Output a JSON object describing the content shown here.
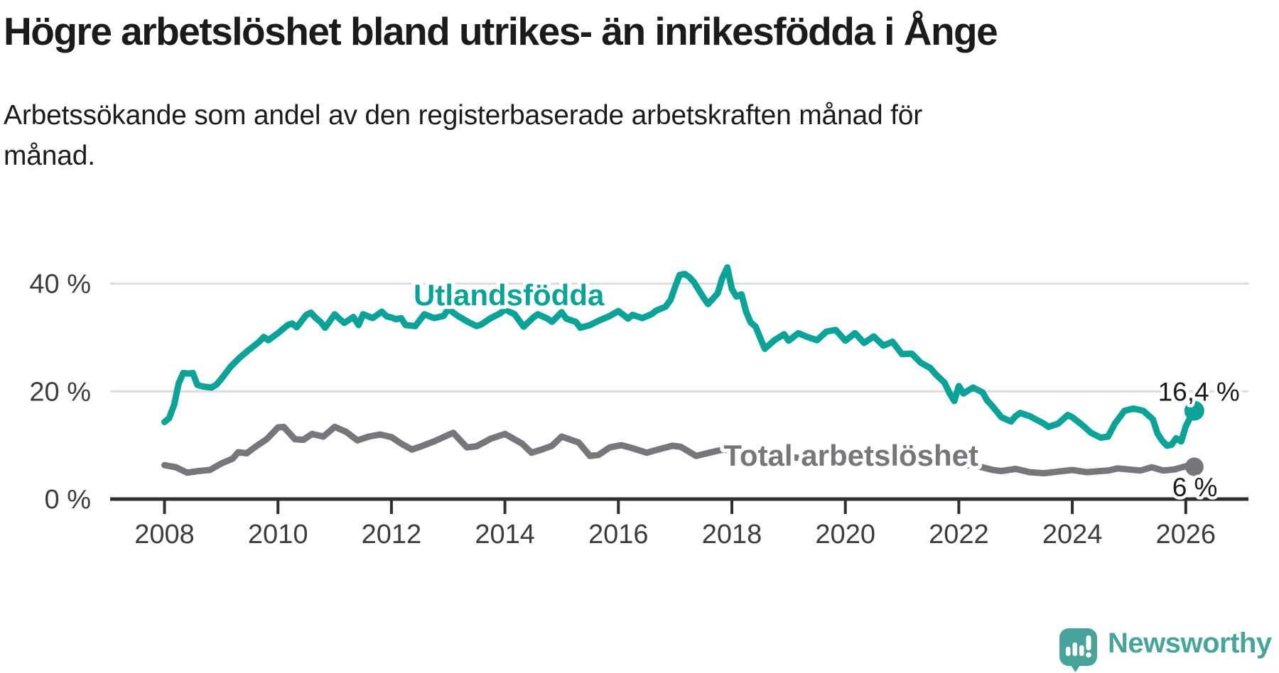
{
  "header": {
    "title": "Högre arbetslöshet bland utrikes- än inrikesfödda i Ånge",
    "subtitle_lines": [
      "Arbetssökande som andel av den registerbaserade arbetskraften månad för",
      "månad."
    ]
  },
  "footer": {
    "brand": "Newsworthy"
  },
  "colors": {
    "series_foreign": "#0ba298",
    "series_total": "#77767b",
    "grid": "#dcdcdc",
    "axis": "#2e2e2e",
    "tick_text": "#3c3c3c",
    "value_label_text": "#1a1a1a",
    "brand": "#48a49b",
    "title_text": "#1b1b1b"
  },
  "chart_data": {
    "type": "line",
    "title": "Högre arbetslöshet bland utrikes- än inrikesfödda i Ånge",
    "xlabel": "",
    "ylabel": "Arbetssökande som andel av den registerbaserade arbetskraften",
    "x_unit": "year_decimal",
    "y_unit": "percent",
    "xlim": [
      2007.05,
      2027.1
    ],
    "ylim": [
      0,
      47
    ],
    "grid": "horizontal",
    "legend_position": "inline-labels",
    "x_ticks": [
      2008,
      2010,
      2012,
      2014,
      2016,
      2018,
      2020,
      2022,
      2024,
      2026
    ],
    "y_ticks": [
      {
        "value": 0,
        "label": "0 %"
      },
      {
        "value": 20,
        "label": "20 %"
      },
      {
        "value": 40,
        "label": "40 %"
      }
    ],
    "series": [
      {
        "id": "utlandsfodda",
        "name": "Utlandsfödda",
        "color": "#0ba298",
        "end_label": "16,4 %",
        "end_value": 16.4,
        "dot_radius": 14,
        "points": [
          [
            2008.0,
            14.3
          ],
          [
            2008.08,
            15.0
          ],
          [
            2008.17,
            17.5
          ],
          [
            2008.25,
            21.5
          ],
          [
            2008.33,
            23.4
          ],
          [
            2008.42,
            23.3
          ],
          [
            2008.5,
            23.4
          ],
          [
            2008.58,
            21.2
          ],
          [
            2008.67,
            20.9
          ],
          [
            2008.75,
            20.8
          ],
          [
            2008.83,
            20.7
          ],
          [
            2008.92,
            21.3
          ],
          [
            2009.0,
            22.3
          ],
          [
            2009.17,
            24.6
          ],
          [
            2009.33,
            26.3
          ],
          [
            2009.5,
            27.8
          ],
          [
            2009.67,
            29.2
          ],
          [
            2009.75,
            30.1
          ],
          [
            2009.83,
            29.5
          ],
          [
            2010.0,
            30.8
          ],
          [
            2010.17,
            32.3
          ],
          [
            2010.25,
            32.6
          ],
          [
            2010.33,
            31.9
          ],
          [
            2010.5,
            34.2
          ],
          [
            2010.58,
            34.6
          ],
          [
            2010.67,
            33.6
          ],
          [
            2010.75,
            32.9
          ],
          [
            2010.83,
            31.8
          ],
          [
            2011.0,
            34.3
          ],
          [
            2011.08,
            33.5
          ],
          [
            2011.17,
            32.7
          ],
          [
            2011.33,
            33.8
          ],
          [
            2011.42,
            32.3
          ],
          [
            2011.5,
            34.3
          ],
          [
            2011.67,
            33.6
          ],
          [
            2011.83,
            34.8
          ],
          [
            2011.92,
            33.9
          ],
          [
            2012.0,
            33.7
          ],
          [
            2012.08,
            33.4
          ],
          [
            2012.17,
            33.6
          ],
          [
            2012.25,
            32.3
          ],
          [
            2012.42,
            32.1
          ],
          [
            2012.58,
            34.3
          ],
          [
            2012.75,
            33.6
          ],
          [
            2012.92,
            34.0
          ],
          [
            2013.0,
            35.3
          ],
          [
            2013.17,
            34.0
          ],
          [
            2013.33,
            33.0
          ],
          [
            2013.5,
            32.1
          ],
          [
            2013.58,
            32.4
          ],
          [
            2013.75,
            33.6
          ],
          [
            2013.92,
            34.5
          ],
          [
            2014.0,
            35.2
          ],
          [
            2014.17,
            34.3
          ],
          [
            2014.33,
            32.0
          ],
          [
            2014.5,
            33.7
          ],
          [
            2014.58,
            34.3
          ],
          [
            2014.75,
            33.5
          ],
          [
            2014.83,
            32.9
          ],
          [
            2015.0,
            34.7
          ],
          [
            2015.08,
            33.5
          ],
          [
            2015.25,
            32.9
          ],
          [
            2015.33,
            31.8
          ],
          [
            2015.5,
            32.3
          ],
          [
            2015.67,
            33.2
          ],
          [
            2015.83,
            33.9
          ],
          [
            2016.0,
            34.9
          ],
          [
            2016.17,
            33.5
          ],
          [
            2016.25,
            34.2
          ],
          [
            2016.42,
            33.6
          ],
          [
            2016.58,
            34.3
          ],
          [
            2016.67,
            35.0
          ],
          [
            2016.83,
            35.7
          ],
          [
            2016.92,
            37.0
          ],
          [
            2017.0,
            39.4
          ],
          [
            2017.08,
            41.6
          ],
          [
            2017.17,
            41.8
          ],
          [
            2017.25,
            41.2
          ],
          [
            2017.33,
            40.3
          ],
          [
            2017.5,
            37.4
          ],
          [
            2017.58,
            36.2
          ],
          [
            2017.75,
            38.2
          ],
          [
            2017.83,
            41.0
          ],
          [
            2017.92,
            43.0
          ],
          [
            2018.0,
            39.0
          ],
          [
            2018.08,
            37.6
          ],
          [
            2018.17,
            38.0
          ],
          [
            2018.25,
            34.8
          ],
          [
            2018.33,
            32.8
          ],
          [
            2018.42,
            32.0
          ],
          [
            2018.5,
            29.9
          ],
          [
            2018.58,
            27.9
          ],
          [
            2018.75,
            29.5
          ],
          [
            2018.92,
            30.6
          ],
          [
            2019.0,
            29.4
          ],
          [
            2019.17,
            30.8
          ],
          [
            2019.33,
            30.1
          ],
          [
            2019.5,
            29.5
          ],
          [
            2019.67,
            31.1
          ],
          [
            2019.83,
            31.4
          ],
          [
            2020.0,
            29.4
          ],
          [
            2020.17,
            30.8
          ],
          [
            2020.33,
            29.0
          ],
          [
            2020.5,
            30.2
          ],
          [
            2020.67,
            28.5
          ],
          [
            2020.83,
            29.2
          ],
          [
            2021.0,
            26.9
          ],
          [
            2021.17,
            27.0
          ],
          [
            2021.33,
            25.3
          ],
          [
            2021.5,
            24.3
          ],
          [
            2021.58,
            23.3
          ],
          [
            2021.75,
            21.6
          ],
          [
            2021.83,
            19.8
          ],
          [
            2021.92,
            18.2
          ],
          [
            2022.0,
            21.0
          ],
          [
            2022.08,
            19.6
          ],
          [
            2022.25,
            20.7
          ],
          [
            2022.42,
            19.8
          ],
          [
            2022.5,
            18.3
          ],
          [
            2022.58,
            17.4
          ],
          [
            2022.75,
            15.2
          ],
          [
            2022.92,
            14.4
          ],
          [
            2023.0,
            15.4
          ],
          [
            2023.08,
            16.0
          ],
          [
            2023.25,
            15.4
          ],
          [
            2023.5,
            14.0
          ],
          [
            2023.58,
            13.4
          ],
          [
            2023.75,
            14.0
          ],
          [
            2023.92,
            15.6
          ],
          [
            2024.0,
            15.2
          ],
          [
            2024.17,
            13.8
          ],
          [
            2024.33,
            12.3
          ],
          [
            2024.5,
            11.4
          ],
          [
            2024.63,
            11.6
          ],
          [
            2024.75,
            14.0
          ],
          [
            2024.92,
            16.4
          ],
          [
            2025.08,
            16.8
          ],
          [
            2025.25,
            16.4
          ],
          [
            2025.42,
            14.8
          ],
          [
            2025.5,
            12.2
          ],
          [
            2025.58,
            10.9
          ],
          [
            2025.67,
            9.9
          ],
          [
            2025.75,
            10.1
          ],
          [
            2025.83,
            11.3
          ],
          [
            2025.92,
            10.7
          ],
          [
            2026.0,
            13.5
          ],
          [
            2026.08,
            15.2
          ],
          [
            2026.15,
            16.4
          ]
        ]
      },
      {
        "id": "total",
        "name": "Total arbetslöshet",
        "color": "#77767b",
        "end_label": "6 %",
        "end_value": 6.0,
        "dot_radius": 13,
        "points": [
          [
            2008.0,
            6.3
          ],
          [
            2008.2,
            5.9
          ],
          [
            2008.4,
            4.9
          ],
          [
            2008.6,
            5.2
          ],
          [
            2008.8,
            5.4
          ],
          [
            2009.0,
            6.6
          ],
          [
            2009.2,
            7.5
          ],
          [
            2009.3,
            8.7
          ],
          [
            2009.45,
            8.5
          ],
          [
            2009.6,
            9.7
          ],
          [
            2009.8,
            11.1
          ],
          [
            2010.0,
            13.3
          ],
          [
            2010.1,
            13.4
          ],
          [
            2010.3,
            11.1
          ],
          [
            2010.45,
            11.0
          ],
          [
            2010.6,
            12.1
          ],
          [
            2010.8,
            11.6
          ],
          [
            2011.0,
            13.4
          ],
          [
            2011.2,
            12.5
          ],
          [
            2011.4,
            10.9
          ],
          [
            2011.6,
            11.6
          ],
          [
            2011.8,
            12.0
          ],
          [
            2012.0,
            11.5
          ],
          [
            2012.17,
            10.3
          ],
          [
            2012.36,
            9.2
          ],
          [
            2012.5,
            9.7
          ],
          [
            2012.75,
            10.7
          ],
          [
            2013.0,
            11.9
          ],
          [
            2013.09,
            12.3
          ],
          [
            2013.33,
            9.6
          ],
          [
            2013.5,
            9.8
          ],
          [
            2013.75,
            11.2
          ],
          [
            2014.0,
            12.1
          ],
          [
            2014.3,
            10.3
          ],
          [
            2014.47,
            8.6
          ],
          [
            2014.65,
            9.2
          ],
          [
            2014.83,
            9.9
          ],
          [
            2015.0,
            11.6
          ],
          [
            2015.3,
            10.5
          ],
          [
            2015.5,
            8.0
          ],
          [
            2015.65,
            8.2
          ],
          [
            2015.85,
            9.6
          ],
          [
            2016.05,
            10.0
          ],
          [
            2016.2,
            9.6
          ],
          [
            2016.5,
            8.6
          ],
          [
            2016.7,
            9.2
          ],
          [
            2016.95,
            9.9
          ],
          [
            2017.1,
            9.7
          ],
          [
            2017.37,
            8.0
          ],
          [
            2017.6,
            8.6
          ],
          [
            2017.85,
            9.2
          ],
          [
            2018.0,
            8.9
          ],
          [
            2018.5,
            8.2
          ],
          [
            2019.0,
            7.8
          ],
          [
            2019.5,
            7.4
          ],
          [
            2020.0,
            7.8
          ],
          [
            2020.5,
            7.4
          ],
          [
            2021.0,
            7.0
          ],
          [
            2021.5,
            6.6
          ],
          [
            2022.0,
            6.4
          ],
          [
            2022.3,
            6.2
          ],
          [
            2022.6,
            5.4
          ],
          [
            2022.75,
            5.2
          ],
          [
            2023.0,
            5.6
          ],
          [
            2023.25,
            5.0
          ],
          [
            2023.5,
            4.8
          ],
          [
            2023.75,
            5.1
          ],
          [
            2024.0,
            5.4
          ],
          [
            2024.25,
            5.0
          ],
          [
            2024.5,
            5.2
          ],
          [
            2024.63,
            5.3
          ],
          [
            2024.8,
            5.7
          ],
          [
            2025.0,
            5.5
          ],
          [
            2025.2,
            5.3
          ],
          [
            2025.4,
            5.9
          ],
          [
            2025.6,
            5.3
          ],
          [
            2025.8,
            5.5
          ],
          [
            2026.0,
            6.1
          ],
          [
            2026.15,
            6.0
          ]
        ]
      }
    ],
    "annotations": [
      {
        "name": "series-label-utlandsfodda",
        "text": "Utlandsfödda",
        "x": 2014.07,
        "y": 37.7,
        "color": "#0ba298",
        "bold": true
      },
      {
        "name": "series-label-total",
        "text": "Total arbetslöshet",
        "x": 2020.1,
        "y": 7.9,
        "color": "#77767b",
        "bold": true
      },
      {
        "name": "end-value-label-utlandsfodda",
        "text": "16,4 %",
        "x": 2026.23,
        "y": 20.0,
        "color": "#1a1a1a",
        "bold": false
      },
      {
        "name": "end-value-label-total",
        "text": "6 %",
        "x": 2026.16,
        "y": 2.25,
        "color": "#1a1a1a",
        "bold": false
      }
    ]
  }
}
